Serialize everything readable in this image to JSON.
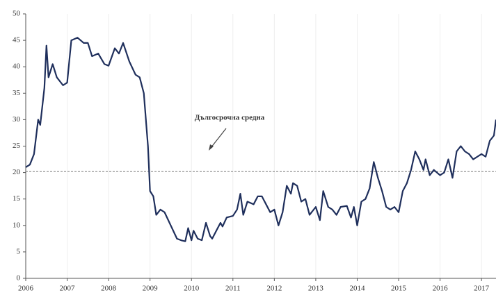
{
  "chart_data": {
    "type": "line",
    "annotation": "Дългосрочна средна",
    "reference_line": 20.2,
    "xlim": [
      2006,
      2017.35
    ],
    "xticks": [
      2006,
      2007,
      2008,
      2009,
      2010,
      2011,
      2012,
      2013,
      2014,
      2015,
      2016,
      2017
    ],
    "ylim": [
      0,
      50
    ],
    "yticks": [
      0,
      5,
      10,
      15,
      20,
      25,
      30,
      35,
      40,
      45,
      50
    ],
    "grid_x": true,
    "series": [
      {
        "color": "#1f2f5c",
        "x": [
          2006.0,
          2006.1,
          2006.2,
          2006.3,
          2006.35,
          2006.45,
          2006.5,
          2006.55,
          2006.65,
          2006.75,
          2006.9,
          2007.0,
          2007.1,
          2007.25,
          2007.4,
          2007.5,
          2007.6,
          2007.75,
          2007.9,
          2008.0,
          2008.15,
          2008.25,
          2008.35,
          2008.5,
          2008.65,
          2008.75,
          2008.85,
          2008.95,
          2009.0,
          2009.08,
          2009.15,
          2009.25,
          2009.35,
          2009.5,
          2009.65,
          2009.75,
          2009.85,
          2009.92,
          2010.0,
          2010.05,
          2010.15,
          2010.25,
          2010.35,
          2010.45,
          2010.5,
          2010.6,
          2010.7,
          2010.75,
          2010.85,
          2011.0,
          2011.1,
          2011.18,
          2011.25,
          2011.35,
          2011.5,
          2011.6,
          2011.7,
          2011.8,
          2011.9,
          2012.0,
          2012.1,
          2012.2,
          2012.3,
          2012.4,
          2012.45,
          2012.55,
          2012.65,
          2012.75,
          2012.85,
          2013.0,
          2013.1,
          2013.18,
          2013.3,
          2013.4,
          2013.5,
          2013.6,
          2013.75,
          2013.85,
          2013.92,
          2014.0,
          2014.1,
          2014.2,
          2014.3,
          2014.4,
          2014.5,
          2014.6,
          2014.7,
          2014.8,
          2014.9,
          2015.0,
          2015.1,
          2015.2,
          2015.3,
          2015.4,
          2015.5,
          2015.6,
          2015.65,
          2015.75,
          2015.85,
          2016.0,
          2016.1,
          2016.2,
          2016.3,
          2016.4,
          2016.5,
          2016.6,
          2016.7,
          2016.8,
          2016.9,
          2017.0,
          2017.1,
          2017.2,
          2017.3,
          2017.35
        ],
        "values": [
          21,
          21.5,
          23.5,
          30,
          29,
          36,
          44,
          38,
          40.5,
          38,
          36.5,
          37,
          45,
          45.5,
          44.5,
          44.5,
          42,
          42.5,
          40.5,
          40.2,
          43.5,
          42.5,
          44.5,
          41,
          38.5,
          38,
          35,
          25,
          16.5,
          15.5,
          12,
          13,
          12.5,
          10,
          7.5,
          7.2,
          7,
          9.5,
          7.2,
          9,
          7.5,
          7.2,
          10.5,
          8,
          7.5,
          9,
          10.5,
          9.8,
          11.5,
          11.8,
          13,
          16,
          12,
          14.5,
          14,
          15.5,
          15.5,
          14,
          12.5,
          13,
          10,
          12.5,
          17.5,
          16,
          18,
          17.5,
          14.5,
          15,
          12,
          13.5,
          11,
          16.5,
          13.5,
          13,
          12,
          13.5,
          13.7,
          11.5,
          13.5,
          10,
          14.5,
          15,
          17,
          22,
          19,
          16.5,
          13.5,
          13,
          13.5,
          12.5,
          16.5,
          18,
          20.5,
          24,
          22.5,
          20.5,
          22.5,
          19.5,
          20.5,
          19.5,
          20,
          22.5,
          19,
          24,
          25,
          24,
          23.5,
          22.5,
          23,
          23.5,
          23,
          26,
          27,
          30
        ]
      }
    ]
  }
}
